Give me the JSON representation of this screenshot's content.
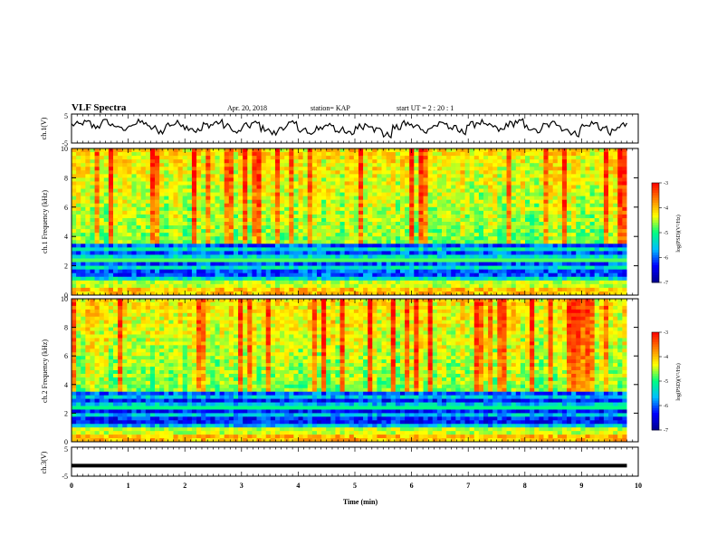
{
  "header": {
    "title": "VLF Spectra",
    "date": "Apr. 20, 2018",
    "station": "station= KAP",
    "start_ut": "start  UT  =   2 : 20 : 1"
  },
  "chart_data": [
    {
      "type": "line",
      "panel": "channel-1-waveform",
      "ylabel": "ch.1(V)",
      "yticks": [
        "5",
        "-5"
      ],
      "ylim": [
        -5,
        5
      ],
      "xlim": [
        0,
        9.8
      ],
      "description_series": [
        1.5,
        2.2,
        0.8,
        2.6,
        1.2,
        -0.5,
        1.8,
        2.4,
        0.2,
        -1.0,
        1.6,
        2.0,
        0.5,
        -0.8,
        1.4,
        2.3,
        0.9,
        -1.5,
        1.0,
        1.9,
        0.0,
        -1.8,
        0.6,
        1.7,
        -0.2,
        -2.2,
        0.4,
        1.5,
        -0.6,
        -1.9,
        0.8,
        1.6,
        -0.4,
        -2.5,
        0.3,
        1.8,
        0.9,
        -0.9,
        1.2,
        2.1,
        0.1,
        -1.2,
        1.5,
        2.4,
        0.7,
        -0.6,
        1.8,
        2.6,
        0.3,
        -1.1,
        1.3,
        2.0,
        -0.3,
        -2.0,
        0.9,
        1.9,
        0.2,
        -1.4,
        1.1,
        2.2
      ]
    },
    {
      "type": "heatmap",
      "panel": "channel-1-spectrogram",
      "ylabel": "ch.1 Frequency (kHz)",
      "yticks": [
        "0",
        "2",
        "4",
        "6",
        "8",
        "10"
      ],
      "ylim": [
        0,
        10
      ],
      "xlim": [
        0,
        9.8
      ],
      "colorbar_label": "log(PSD)(V²/Hz)",
      "colorbar_ticks": [
        "-3",
        "-4",
        "-5",
        "-6",
        "-7"
      ],
      "colorbar_range": [
        -7,
        -3
      ],
      "colormap": [
        "#00008f",
        "#0000ff",
        "#00bfff",
        "#00ff80",
        "#ffff00",
        "#ff8000",
        "#ff0000"
      ]
    },
    {
      "type": "heatmap",
      "panel": "channel-2-spectrogram",
      "ylabel": "ch.2 Frequency (kHz)",
      "yticks": [
        "0",
        "2",
        "4",
        "6",
        "8",
        "10"
      ],
      "ylim": [
        0,
        10
      ],
      "xlim": [
        0,
        9.8
      ],
      "colorbar_label": "log(PSD)(V²/Hz)",
      "colorbar_ticks": [
        "-3",
        "-4",
        "-5",
        "-6",
        "-7"
      ],
      "colorbar_range": [
        -7,
        -3
      ],
      "colormap": [
        "#00008f",
        "#0000ff",
        "#00bfff",
        "#00ff80",
        "#ffff00",
        "#ff8000",
        "#ff0000"
      ]
    },
    {
      "type": "line",
      "panel": "channel-3-waveform",
      "ylabel": "ch.3(V)",
      "yticks": [
        "5",
        "-5"
      ],
      "ylim": [
        -5,
        5
      ],
      "xlim": [
        0,
        9.8
      ],
      "x": [
        0,
        9.8
      ],
      "values": [
        -1.5,
        -1.5
      ]
    }
  ],
  "xaxis": {
    "label": "Time  (min)",
    "ticks": [
      "0",
      "1",
      "2",
      "3",
      "4",
      "5",
      "6",
      "7",
      "8",
      "9",
      "10"
    ]
  }
}
